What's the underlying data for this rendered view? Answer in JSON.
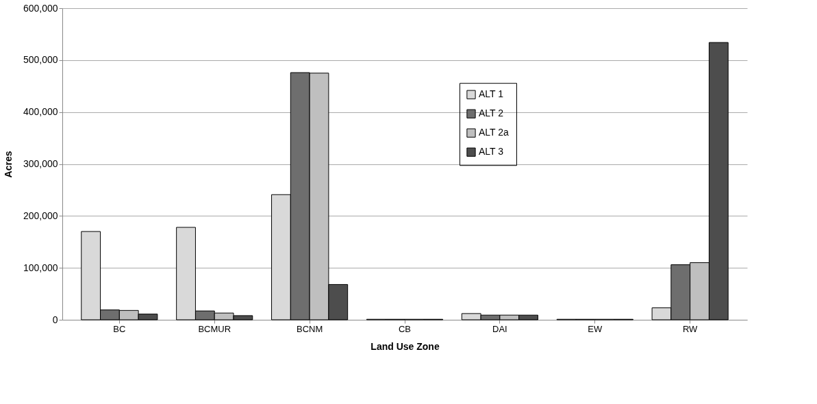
{
  "chart_data": {
    "type": "bar",
    "xlabel": "Land Use Zone",
    "ylabel": "Acres",
    "categories": [
      "BC",
      "BCMUR",
      "BCNM",
      "CB",
      "DAI",
      "EW",
      "RW"
    ],
    "series": [
      {
        "name": "ALT 1",
        "color": "#d9d9d9",
        "values": [
          170000,
          178000,
          241000,
          1000,
          12000,
          1000,
          23000
        ]
      },
      {
        "name": "ALT 2",
        "color": "#6e6e6e",
        "values": [
          19000,
          17000,
          476000,
          1000,
          9000,
          1000,
          106000
        ]
      },
      {
        "name": "ALT 2a",
        "color": "#bfbfbf",
        "values": [
          18000,
          13000,
          475000,
          1000,
          9000,
          1000,
          110000
        ]
      },
      {
        "name": "ALT 3",
        "color": "#4d4d4d",
        "values": [
          11000,
          8000,
          68000,
          1000,
          9000,
          1000,
          534000
        ]
      }
    ],
    "ylim": [
      0,
      600000
    ],
    "yticks": [
      0,
      {
        "value": 100000,
        "label": "100,000"
      },
      {
        "value": 200000,
        "label": "200,000"
      },
      {
        "value": 300000,
        "label": "300,000"
      },
      {
        "value": 400000,
        "label": "400,000"
      },
      {
        "value": 500000,
        "label": "500,000"
      },
      {
        "value": 600000,
        "label": "600,000"
      }
    ],
    "grid": "y",
    "legend": "top right"
  }
}
